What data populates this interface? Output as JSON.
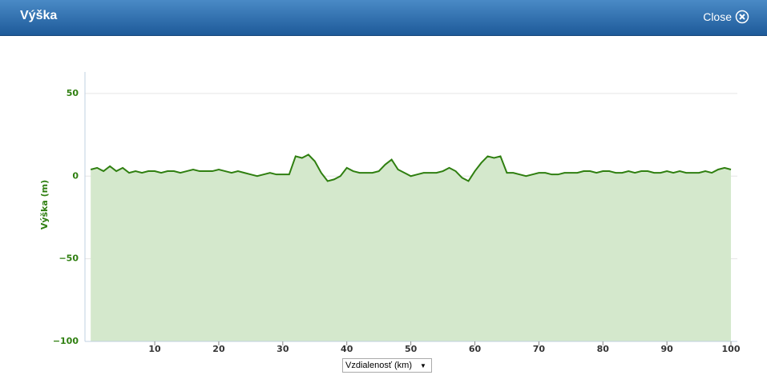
{
  "header": {
    "title": "Výška",
    "close": "Close"
  },
  "chart_data": {
    "type": "area",
    "y_label": "Výška (m)",
    "x_label": "Vzdialenosť (km)",
    "x": [
      0,
      1,
      2,
      3,
      4,
      5,
      6,
      7,
      8,
      9,
      10,
      11,
      12,
      13,
      14,
      15,
      16,
      17,
      18,
      19,
      20,
      21,
      22,
      23,
      24,
      25,
      26,
      27,
      28,
      29,
      30,
      31,
      32,
      33,
      34,
      35,
      36,
      37,
      38,
      39,
      40,
      41,
      42,
      43,
      44,
      45,
      46,
      47,
      48,
      49,
      50,
      51,
      52,
      53,
      54,
      55,
      56,
      57,
      58,
      59,
      60,
      61,
      62,
      63,
      64,
      65,
      66,
      67,
      68,
      69,
      70,
      71,
      72,
      73,
      74,
      75,
      76,
      77,
      78,
      79,
      80,
      81,
      82,
      83,
      84,
      85,
      86,
      87,
      88,
      89,
      90,
      91,
      92,
      93,
      94,
      95,
      96,
      97,
      98,
      99,
      100
    ],
    "series": [
      {
        "color": "#2f7f10",
        "fill": "#d4e8cc",
        "values": [
          4,
          5,
          3,
          6,
          3,
          5,
          2,
          3,
          2,
          3,
          3,
          2,
          3,
          3,
          2,
          3,
          4,
          3,
          3,
          3,
          4,
          3,
          2,
          3,
          2,
          1,
          0,
          1,
          2,
          1,
          1,
          1,
          12,
          11,
          13,
          9,
          2,
          -3,
          -2,
          0,
          5,
          3,
          2,
          2,
          2,
          3,
          7,
          10,
          4,
          2,
          0,
          1,
          2,
          2,
          2,
          3,
          5,
          3,
          -1,
          -3,
          3,
          8,
          12,
          11,
          12,
          2,
          2,
          1,
          0,
          1,
          2,
          2,
          1,
          1,
          2,
          2,
          2,
          3,
          3,
          2,
          3,
          3,
          2,
          2,
          3,
          2,
          3,
          3,
          2,
          2,
          3,
          2,
          3,
          2,
          2,
          2,
          3,
          2,
          4,
          5,
          4
        ]
      }
    ],
    "xlim": [
      -0.9,
      101
    ],
    "ylim": [
      -100,
      63
    ],
    "xticks": [
      10,
      20,
      30,
      40,
      50,
      60,
      70,
      80,
      90,
      100
    ],
    "yticks": [
      {
        "value": -100,
        "label": "−100"
      },
      {
        "value": -50,
        "label": "−50"
      },
      0,
      50
    ],
    "grid": true
  }
}
